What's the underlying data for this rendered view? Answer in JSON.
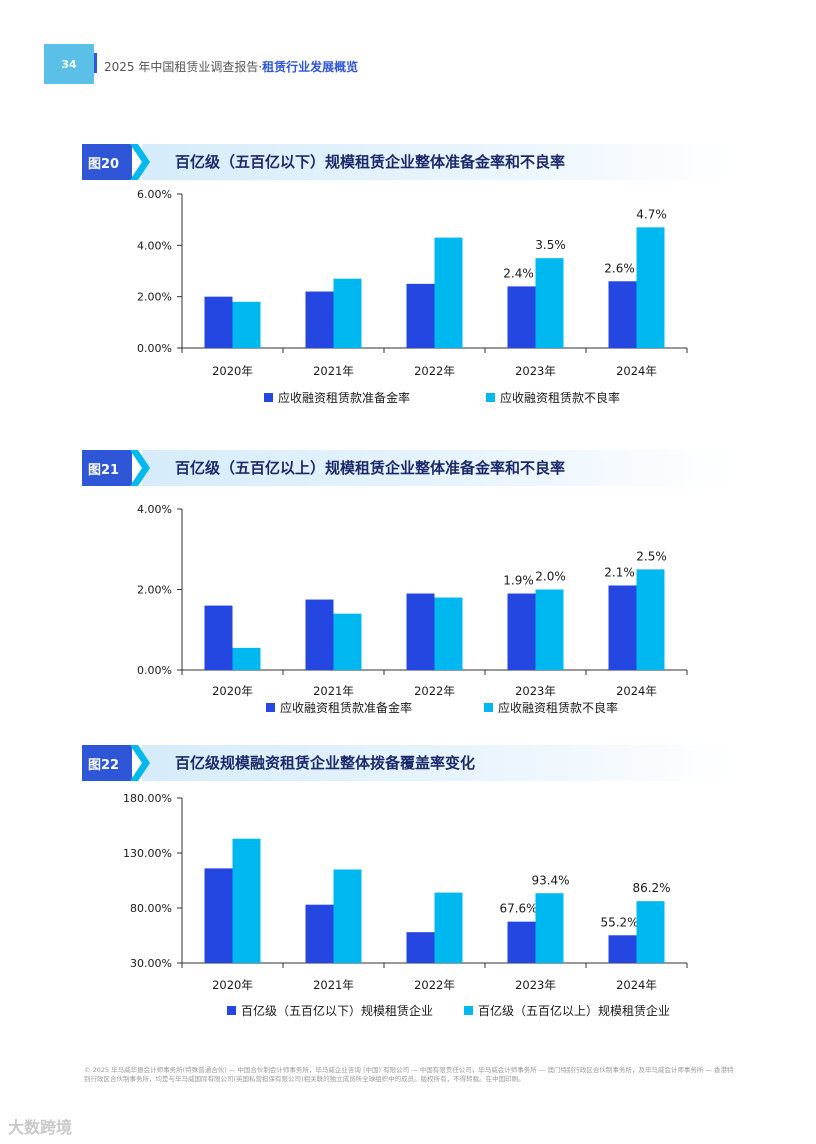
{
  "header": {
    "page_number": "34",
    "report_title": "2025 年中国租赁业调查报告·",
    "section_title": "租赁行业发展概览"
  },
  "colors": {
    "series_dark": "#2347e0",
    "series_light": "#00b8f0",
    "tag_bg": "#2f56d6",
    "page_tab": "#5bc0e8"
  },
  "figures": [
    {
      "tag": "图20",
      "title": "百亿级（五百亿以下）规模租赁企业整体准备金率和不良率"
    },
    {
      "tag": "图21",
      "title": "百亿级（五百亿以上）规模租赁企业整体准备金率和不良率"
    },
    {
      "tag": "图22",
      "title": "百亿级规模融资租赁企业整体拨备覆盖率变化"
    }
  ],
  "chart_data": [
    {
      "type": "bar",
      "categories": [
        "2020年",
        "2021年",
        "2022年",
        "2023年",
        "2024年"
      ],
      "yticks": [
        "0.00%",
        "2.00%",
        "4.00%",
        "6.00%"
      ],
      "ylim": [
        0,
        6
      ],
      "series": [
        {
          "name": "应收融资租赁款准备金率",
          "values": [
            2.0,
            2.2,
            2.5,
            2.4,
            2.6
          ],
          "labels": [
            "",
            "",
            "",
            "2.4%",
            "2.6%"
          ]
        },
        {
          "name": "应收融资租赁款不良率",
          "values": [
            1.8,
            2.7,
            4.3,
            3.5,
            4.7
          ],
          "labels": [
            "",
            "",
            "",
            "3.5%",
            "4.7%"
          ]
        }
      ],
      "legend": "bottom"
    },
    {
      "type": "bar",
      "categories": [
        "2020年",
        "2021年",
        "2022年",
        "2023年",
        "2024年"
      ],
      "yticks": [
        "0.00%",
        "2.00%",
        "4.00%"
      ],
      "ylim": [
        0,
        4
      ],
      "series": [
        {
          "name": "应收融资租赁款准备金率",
          "values": [
            1.6,
            1.75,
            1.9,
            1.9,
            2.1
          ],
          "labels": [
            "",
            "",
            "",
            "1.9%",
            "2.1%"
          ]
        },
        {
          "name": "应收融资租赁款不良率",
          "values": [
            0.55,
            1.4,
            1.8,
            2.0,
            2.5
          ],
          "labels": [
            "",
            "",
            "",
            "2.0%",
            "2.5%"
          ]
        }
      ],
      "legend": "bottom"
    },
    {
      "type": "bar",
      "categories": [
        "2020年",
        "2021年",
        "2022年",
        "2023年",
        "2024年"
      ],
      "yticks": [
        "30.00%",
        "80.00%",
        "130.00%",
        "180.00%"
      ],
      "ylim": [
        30,
        180
      ],
      "series": [
        {
          "name": "百亿级（五百亿以下）规模租赁企业",
          "values": [
            116,
            83,
            58,
            67.6,
            55.2
          ],
          "labels": [
            "",
            "",
            "",
            "67.6%",
            "55.2%"
          ]
        },
        {
          "name": "百亿级（五百亿以上）规模租赁企业",
          "values": [
            143,
            115,
            94,
            93.4,
            86.2
          ],
          "labels": [
            "",
            "",
            "",
            "93.4%",
            "86.2%"
          ]
        }
      ],
      "legend": "bottom"
    }
  ],
  "footer": {
    "text": "© 2025 毕马威华振会计师事务所(特殊普通合伙) — 中国合伙制会计师事务所，毕马威企业咨询 (中国) 有限公司 — 中国有限责任公司，毕马威会计师事务所 — 澳门特别行政区合伙制事务所，及毕马威会计师事务所 — 香港特别行政区合伙制事务所，均是与毕马威国际有限公司(英国私营担保有限公司)相关联的独立成员所全球组织中的成员。版权所有，不得转载。在中国印刷。"
  },
  "watermark": {
    "text": "大数跨境"
  }
}
